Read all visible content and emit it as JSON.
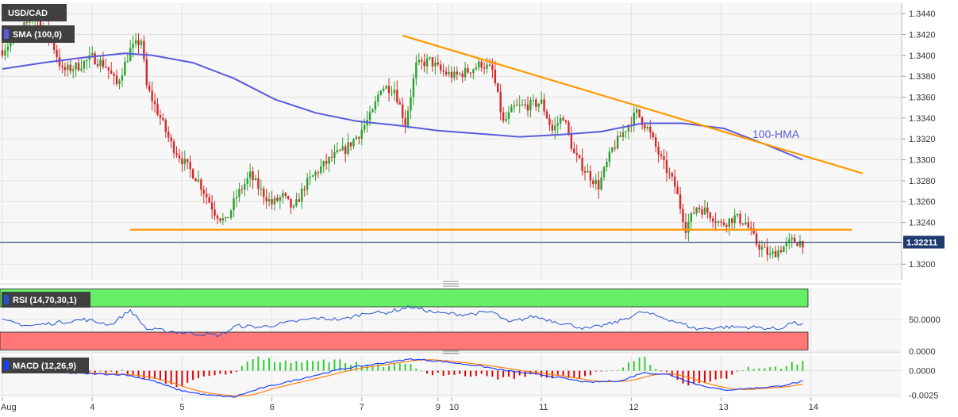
{
  "chart_data": {
    "type": "candlestick",
    "symbol": "USD/CAD",
    "indicator_labels": {
      "sma": "SMA (100,0)",
      "rsi": "RSI (14,70,30,1)",
      "macd": "MACD (12,26,9)"
    },
    "annotation": "100-HMA",
    "last_price": "1.32211",
    "price_axis": {
      "min": 1.3185,
      "max": 1.345,
      "ticks": [
        "1.3440",
        "1.3420",
        "1.3400",
        "1.3380",
        "1.3360",
        "1.3340",
        "1.3320",
        "1.3300",
        "1.3280",
        "1.3260",
        "1.3240",
        "1.3220",
        "1.3200"
      ]
    },
    "rsi_axis": {
      "min": 0,
      "max": 100,
      "ticks": [
        "50.0000",
        "0.0000"
      ]
    },
    "macd_axis": {
      "min": -0.0028,
      "max": 0.0016,
      "ticks": [
        "0.0000",
        "-0.0025"
      ]
    },
    "x_labels": [
      {
        "text": "Aug",
        "i": 0
      },
      {
        "text": "4",
        "i": 33
      },
      {
        "text": "5",
        "i": 66
      },
      {
        "text": "6",
        "i": 99
      },
      {
        "text": "7",
        "i": 132
      },
      {
        "text": "9",
        "i": 160
      },
      {
        "text": "10",
        "i": 165
      },
      {
        "text": "11",
        "i": 198
      },
      {
        "text": "12",
        "i": 231
      },
      {
        "text": "13",
        "i": 264
      },
      {
        "text": "14",
        "i": 297
      }
    ],
    "anchors": [
      [
        0,
        1.3405
      ],
      [
        5,
        1.3418
      ],
      [
        12,
        1.344
      ],
      [
        18,
        1.3415
      ],
      [
        22,
        1.3385
      ],
      [
        28,
        1.339
      ],
      [
        33,
        1.3398
      ],
      [
        38,
        1.339
      ],
      [
        42,
        1.3372
      ],
      [
        47,
        1.3405
      ],
      [
        51,
        1.3415
      ],
      [
        53,
        1.337
      ],
      [
        58,
        1.334
      ],
      [
        62,
        1.3315
      ],
      [
        66,
        1.33
      ],
      [
        72,
        1.328
      ],
      [
        78,
        1.325
      ],
      [
        82,
        1.324
      ],
      [
        86,
        1.3265
      ],
      [
        91,
        1.3285
      ],
      [
        95,
        1.327
      ],
      [
        99,
        1.3258
      ],
      [
        103,
        1.3265
      ],
      [
        107,
        1.3252
      ],
      [
        111,
        1.3275
      ],
      [
        116,
        1.329
      ],
      [
        121,
        1.3302
      ],
      [
        126,
        1.331
      ],
      [
        131,
        1.3325
      ],
      [
        136,
        1.3345
      ],
      [
        139,
        1.337
      ],
      [
        144,
        1.3368
      ],
      [
        148,
        1.3335
      ],
      [
        152,
        1.339
      ],
      [
        157,
        1.3395
      ],
      [
        161,
        1.3385
      ],
      [
        166,
        1.338
      ],
      [
        171,
        1.3385
      ],
      [
        176,
        1.3392
      ],
      [
        180,
        1.3385
      ],
      [
        184,
        1.3335
      ],
      [
        188,
        1.335
      ],
      [
        193,
        1.3352
      ],
      [
        198,
        1.3355
      ],
      [
        202,
        1.3328
      ],
      [
        206,
        1.3342
      ],
      [
        210,
        1.3305
      ],
      [
        214,
        1.329
      ],
      [
        219,
        1.3275
      ],
      [
        224,
        1.331
      ],
      [
        229,
        1.333
      ],
      [
        233,
        1.3345
      ],
      [
        237,
        1.333
      ],
      [
        242,
        1.33
      ],
      [
        247,
        1.3275
      ],
      [
        251,
        1.3235
      ],
      [
        255,
        1.3255
      ],
      [
        259,
        1.325
      ],
      [
        264,
        1.3238
      ],
      [
        269,
        1.3245
      ],
      [
        273,
        1.324
      ],
      [
        277,
        1.322
      ],
      [
        282,
        1.3208
      ],
      [
        286,
        1.3215
      ],
      [
        290,
        1.3222
      ],
      [
        294,
        1.3221
      ]
    ],
    "hma_points": [
      [
        0,
        1.3387
      ],
      [
        15,
        1.3393
      ],
      [
        30,
        1.3398
      ],
      [
        45,
        1.3402
      ],
      [
        55,
        1.34
      ],
      [
        70,
        1.3393
      ],
      [
        85,
        1.3378
      ],
      [
        100,
        1.3358
      ],
      [
        115,
        1.3345
      ],
      [
        130,
        1.3337
      ],
      [
        145,
        1.3333
      ],
      [
        160,
        1.3328
      ],
      [
        175,
        1.3325
      ],
      [
        190,
        1.3322
      ],
      [
        205,
        1.3324
      ],
      [
        220,
        1.3327
      ],
      [
        235,
        1.3335
      ],
      [
        250,
        1.3335
      ],
      [
        265,
        1.333
      ],
      [
        280,
        1.3315
      ],
      [
        294,
        1.33
      ]
    ],
    "trendlines": [
      {
        "from": [
          147,
          1.3419
        ],
        "to": [
          316,
          1.3287
        ]
      },
      {
        "from": [
          47,
          1.3233
        ],
        "to": [
          312,
          1.3233
        ]
      }
    ],
    "rsi_anchors": [
      [
        0,
        48
      ],
      [
        10,
        40
      ],
      [
        20,
        45
      ],
      [
        30,
        50
      ],
      [
        40,
        42
      ],
      [
        47,
        65
      ],
      [
        53,
        35
      ],
      [
        60,
        32
      ],
      [
        70,
        28
      ],
      [
        80,
        25
      ],
      [
        86,
        40
      ],
      [
        95,
        38
      ],
      [
        105,
        45
      ],
      [
        115,
        52
      ],
      [
        125,
        50
      ],
      [
        135,
        62
      ],
      [
        140,
        60
      ],
      [
        150,
        70
      ],
      [
        160,
        60
      ],
      [
        170,
        58
      ],
      [
        180,
        62
      ],
      [
        186,
        45
      ],
      [
        195,
        55
      ],
      [
        205,
        45
      ],
      [
        215,
        35
      ],
      [
        225,
        45
      ],
      [
        235,
        62
      ],
      [
        245,
        50
      ],
      [
        255,
        35
      ],
      [
        265,
        38
      ],
      [
        275,
        38
      ],
      [
        285,
        35
      ],
      [
        290,
        45
      ],
      [
        294,
        42
      ]
    ],
    "macd_anchors": [
      [
        0,
        -0.0002
      ],
      [
        15,
        -0.0001
      ],
      [
        30,
        -0.0003
      ],
      [
        45,
        -0.0004
      ],
      [
        55,
        -0.001
      ],
      [
        65,
        -0.002
      ],
      [
        75,
        -0.0025
      ],
      [
        85,
        -0.0027
      ],
      [
        95,
        -0.0018
      ],
      [
        110,
        -0.0008
      ],
      [
        125,
        0.0002
      ],
      [
        140,
        0.0008
      ],
      [
        150,
        0.0012
      ],
      [
        160,
        0.001
      ],
      [
        175,
        0.0005
      ],
      [
        185,
        0.0
      ],
      [
        200,
        -0.0005
      ],
      [
        215,
        -0.0012
      ],
      [
        228,
        -0.001
      ],
      [
        235,
        -0.0002
      ],
      [
        245,
        -0.0004
      ],
      [
        255,
        -0.0014
      ],
      [
        265,
        -0.002
      ],
      [
        275,
        -0.0018
      ],
      [
        285,
        -0.0016
      ],
      [
        294,
        -0.0011
      ]
    ],
    "signal_lag": 5,
    "colors": {
      "bull": "#2ca02c",
      "bear": "#d62728",
      "sma": "#5a5adc",
      "trend": "#ff9900",
      "price_line": "#1f3a6e",
      "rsi_line": "#2255cc",
      "macd_line": "#1f3fff",
      "signal_line": "#ff7f0e",
      "hist_pos": "#33cc33",
      "hist_neg": "#dd0000",
      "rsi_over": "#66ee66",
      "rsi_under": "#ff7777",
      "label_bg": "#404040",
      "grid": "#e2e2e2",
      "pane_bg": "#f7f7f8"
    }
  }
}
